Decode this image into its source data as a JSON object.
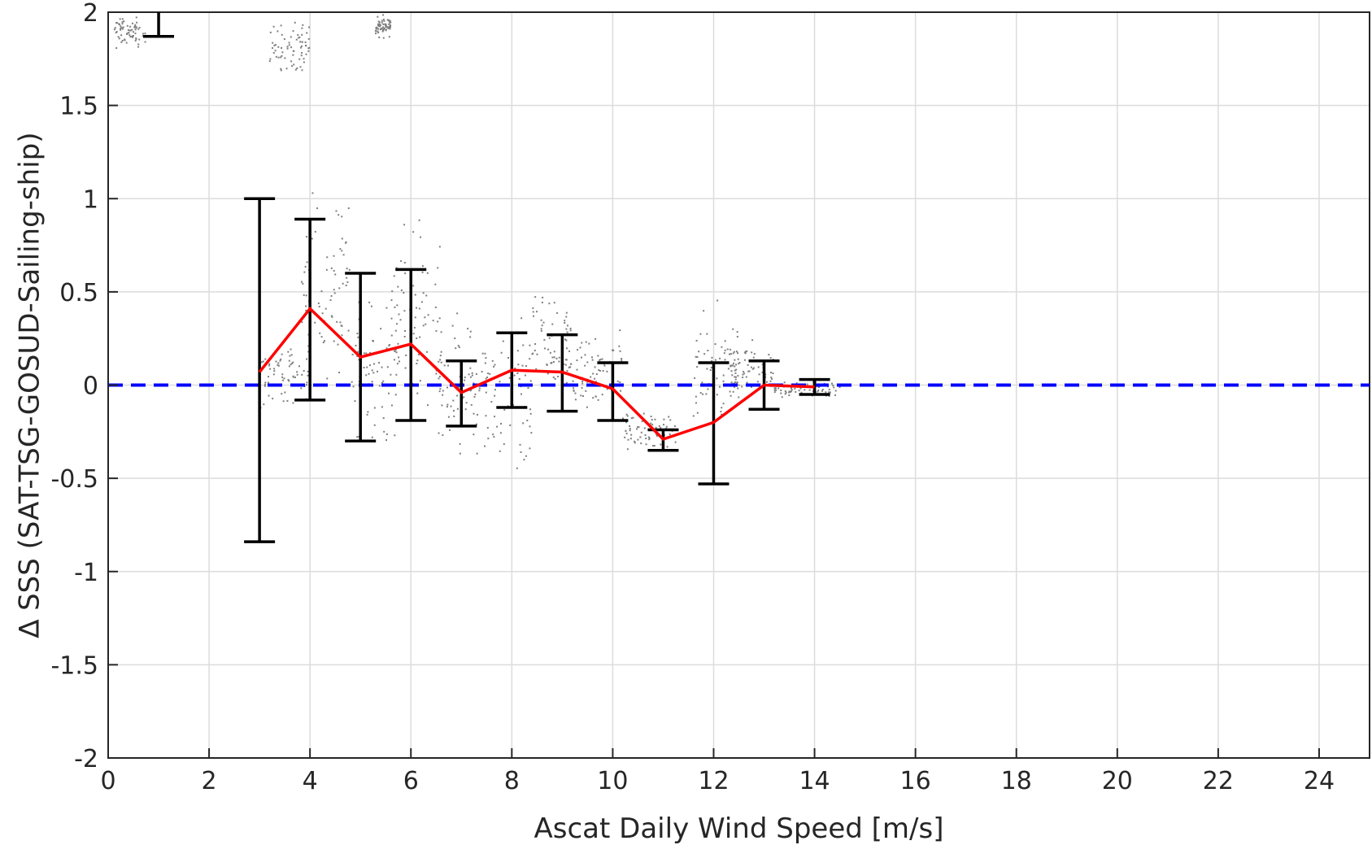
{
  "chart_data": {
    "type": "line",
    "xlabel": "Ascat Daily Wind Speed [m/s]",
    "ylabel": "∆ SSS (SAT-TSG-GOSUD-Sailing-ship)",
    "xlim": [
      0,
      25
    ],
    "ylim": [
      -2,
      2
    ],
    "xticks": [
      0,
      2,
      4,
      6,
      8,
      10,
      12,
      14,
      16,
      18,
      20,
      22,
      24
    ],
    "yticks": [
      -2,
      -1.5,
      -1,
      -0.5,
      0,
      0.5,
      1,
      1.5,
      2
    ],
    "grid": true,
    "reference_line": {
      "y": 0,
      "style": "dashed",
      "color": "#0000ff"
    },
    "mean_series": {
      "color": "#ff0000",
      "x": [
        3,
        4,
        5,
        6,
        7,
        8,
        9,
        10,
        11,
        12,
        13,
        14
      ],
      "y": [
        0.07,
        0.41,
        0.15,
        0.22,
        -0.04,
        0.08,
        0.07,
        -0.02,
        -0.29,
        -0.2,
        0.0,
        -0.01
      ]
    },
    "error_bars": {
      "color": "#000000",
      "bars": [
        {
          "x": 1,
          "low": 1.87,
          "high": 2.0
        },
        {
          "x": 3,
          "low": -0.84,
          "high": 1.0
        },
        {
          "x": 4,
          "low": -0.08,
          "high": 0.89
        },
        {
          "x": 5,
          "low": -0.3,
          "high": 0.6
        },
        {
          "x": 6,
          "low": -0.19,
          "high": 0.62
        },
        {
          "x": 7,
          "low": -0.22,
          "high": 0.13
        },
        {
          "x": 8,
          "low": -0.12,
          "high": 0.28
        },
        {
          "x": 9,
          "low": -0.14,
          "high": 0.27
        },
        {
          "x": 10,
          "low": -0.19,
          "high": 0.12
        },
        {
          "x": 11,
          "low": -0.35,
          "high": -0.24
        },
        {
          "x": 12,
          "low": -0.53,
          "high": 0.12
        },
        {
          "x": 13,
          "low": -0.13,
          "high": 0.13
        },
        {
          "x": 14,
          "low": -0.05,
          "high": 0.03
        }
      ]
    },
    "scatter": {
      "color": "#7f7f7f",
      "clusters": [
        {
          "x": [
            0.1,
            0.75
          ],
          "y": [
            1.78,
            2.0
          ]
        },
        {
          "x": [
            3.2,
            4.0
          ],
          "y": [
            1.63,
            2.0
          ]
        },
        {
          "x": [
            5.3,
            5.6
          ],
          "y": [
            1.85,
            2.0
          ]
        },
        {
          "x": [
            3.0,
            4.0
          ],
          "y": [
            -0.2,
            0.3
          ]
        },
        {
          "x": [
            3.8,
            4.8
          ],
          "y": [
            -0.05,
            1.17
          ]
        },
        {
          "x": [
            4.8,
            5.8
          ],
          "y": [
            -0.42,
            0.62
          ]
        },
        {
          "x": [
            5.6,
            6.6
          ],
          "y": [
            -0.3,
            1.03
          ]
        },
        {
          "x": [
            6.5,
            7.4
          ],
          "y": [
            -0.5,
            0.45
          ]
        },
        {
          "x": [
            7.4,
            8.4
          ],
          "y": [
            -0.67,
            0.5
          ]
        },
        {
          "x": [
            8.4,
            9.2
          ],
          "y": [
            -0.2,
            0.57
          ]
        },
        {
          "x": [
            9.2,
            10.2
          ],
          "y": [
            -0.25,
            0.4
          ]
        },
        {
          "x": [
            10.2,
            11.3
          ],
          "y": [
            -0.4,
            -0.1
          ]
        },
        {
          "x": [
            11.6,
            12.5
          ],
          "y": [
            -0.35,
            0.51
          ]
        },
        {
          "x": [
            12.3,
            13.2
          ],
          "y": [
            -0.1,
            0.27
          ]
        },
        {
          "x": [
            13.2,
            14.5
          ],
          "y": [
            -0.08,
            0.03
          ]
        }
      ]
    }
  }
}
